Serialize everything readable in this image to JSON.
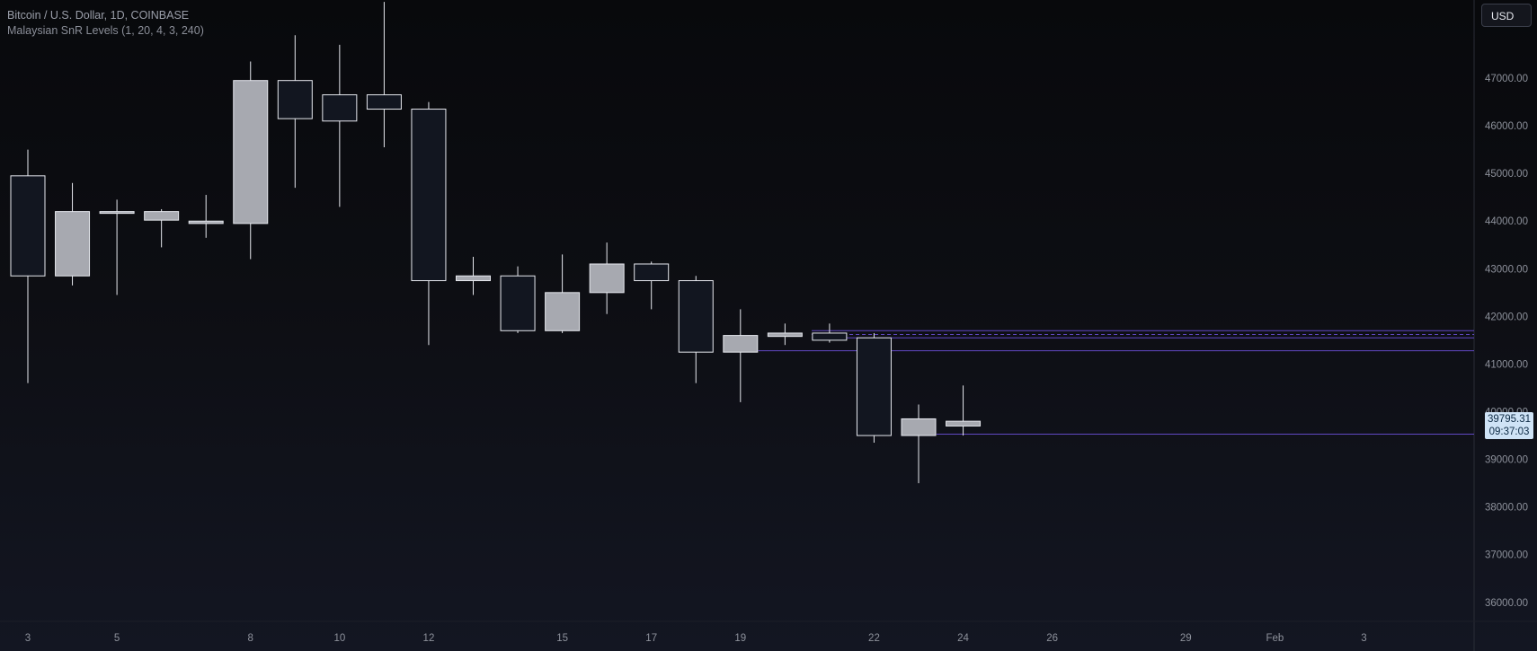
{
  "header": {
    "symbol_line": "Bitcoin / U.S. Dollar, 1D, COINBASE",
    "indicator_line": "Malaysian SnR Levels (1, 20, 4, 3, 240)",
    "currency_button": "USD"
  },
  "last_price": {
    "value": "39795.31",
    "countdown": "09:37:03"
  },
  "chart_data": {
    "type": "candlestick",
    "y_axis": {
      "min": 35600,
      "max": 48640,
      "ticks": [
        47000,
        46000,
        45000,
        44000,
        43000,
        42000,
        41000,
        40000,
        39000,
        38000,
        37000,
        36000
      ],
      "tick_labels": [
        "47000.00",
        "46000.00",
        "45000.00",
        "44000.00",
        "43000.00",
        "42000.00",
        "41000.00",
        "40000.00",
        "39000.00",
        "38000.00",
        "37000.00",
        "36000.00"
      ]
    },
    "x_axis": {
      "slots": [
        3,
        4,
        5,
        6,
        7,
        8,
        9,
        10,
        11,
        12,
        13,
        14,
        15,
        16,
        17,
        18,
        19,
        20,
        21,
        22,
        23,
        24,
        25,
        26,
        27,
        28,
        29,
        30,
        31,
        32,
        33
      ],
      "labels": [
        {
          "slot": 3,
          "text": "3"
        },
        {
          "slot": 5,
          "text": "5"
        },
        {
          "slot": 8,
          "text": "8"
        },
        {
          "slot": 10,
          "text": "10"
        },
        {
          "slot": 12,
          "text": "12"
        },
        {
          "slot": 15,
          "text": "15"
        },
        {
          "slot": 17,
          "text": "17"
        },
        {
          "slot": 19,
          "text": "19"
        },
        {
          "slot": 22,
          "text": "22"
        },
        {
          "slot": 24,
          "text": "24"
        },
        {
          "slot": 26,
          "text": "26"
        },
        {
          "slot": 29,
          "text": "29"
        },
        {
          "slot": 31,
          "text": "Feb"
        },
        {
          "slot": 33,
          "text": "3"
        }
      ]
    },
    "candles": [
      {
        "slot": 3,
        "open": 44950,
        "high": 45500,
        "low": 40600,
        "close": 42850
      },
      {
        "slot": 4,
        "open": 42850,
        "high": 44800,
        "low": 42650,
        "close": 44200
      },
      {
        "slot": 5,
        "open": 44200,
        "high": 44450,
        "low": 42450,
        "close": 44200
      },
      {
        "slot": 6,
        "open": 44020,
        "high": 44250,
        "low": 43450,
        "close": 44200
      },
      {
        "slot": 7,
        "open": 43950,
        "high": 44550,
        "low": 43650,
        "close": 44000
      },
      {
        "slot": 8,
        "open": 43950,
        "high": 47350,
        "low": 43200,
        "close": 46950
      },
      {
        "slot": 9,
        "open": 46950,
        "high": 47900,
        "low": 44700,
        "close": 46150
      },
      {
        "slot": 10,
        "open": 46650,
        "high": 47700,
        "low": 44300,
        "close": 46100
      },
      {
        "slot": 11,
        "open": 46650,
        "high": 48600,
        "low": 45550,
        "close": 46350
      },
      {
        "slot": 12,
        "open": 46350,
        "high": 46500,
        "low": 41400,
        "close": 42750
      },
      {
        "slot": 13,
        "open": 42750,
        "high": 43250,
        "low": 42450,
        "close": 42850
      },
      {
        "slot": 14,
        "open": 42850,
        "high": 43050,
        "low": 41650,
        "close": 41700
      },
      {
        "slot": 15,
        "open": 41700,
        "high": 43300,
        "low": 41650,
        "close": 42500
      },
      {
        "slot": 16,
        "open": 42500,
        "high": 43550,
        "low": 42050,
        "close": 43100
      },
      {
        "slot": 17,
        "open": 43100,
        "high": 43150,
        "low": 42150,
        "close": 42750
      },
      {
        "slot": 18,
        "open": 42750,
        "high": 42850,
        "low": 40600,
        "close": 41250
      },
      {
        "slot": 19,
        "open": 41250,
        "high": 42150,
        "low": 40200,
        "close": 41600
      },
      {
        "slot": 20,
        "open": 41580,
        "high": 41850,
        "low": 41400,
        "close": 41650
      },
      {
        "slot": 21,
        "open": 41650,
        "high": 41850,
        "low": 41450,
        "close": 41500
      },
      {
        "slot": 22,
        "open": 41550,
        "high": 41650,
        "low": 39350,
        "close": 39500
      },
      {
        "slot": 23,
        "open": 39500,
        "high": 40150,
        "low": 38500,
        "close": 39850
      },
      {
        "slot": 24,
        "open": 39700,
        "high": 40550,
        "low": 39500,
        "close": 39800
      }
    ],
    "levels": [
      {
        "price": 41700,
        "from_slot": 20.6,
        "color": "#6a4fd6",
        "style": "solid"
      },
      {
        "price": 41620,
        "from_slot": 20.6,
        "color": "#6a4fd6",
        "style": "dashed"
      },
      {
        "price": 41550,
        "from_slot": 20.6,
        "color": "#6a4fd6",
        "style": "solid"
      },
      {
        "price": 41280,
        "from_slot": 19.4,
        "color": "#6a4fd6",
        "style": "solid"
      },
      {
        "price": 39530,
        "from_slot": 23.4,
        "color": "#6a4fd6",
        "style": "solid"
      }
    ],
    "colors": {
      "up_body": "#a7a9b0",
      "down_body": "#121620",
      "border": "#e6e8ee",
      "wick": "#e6e8ee"
    }
  }
}
